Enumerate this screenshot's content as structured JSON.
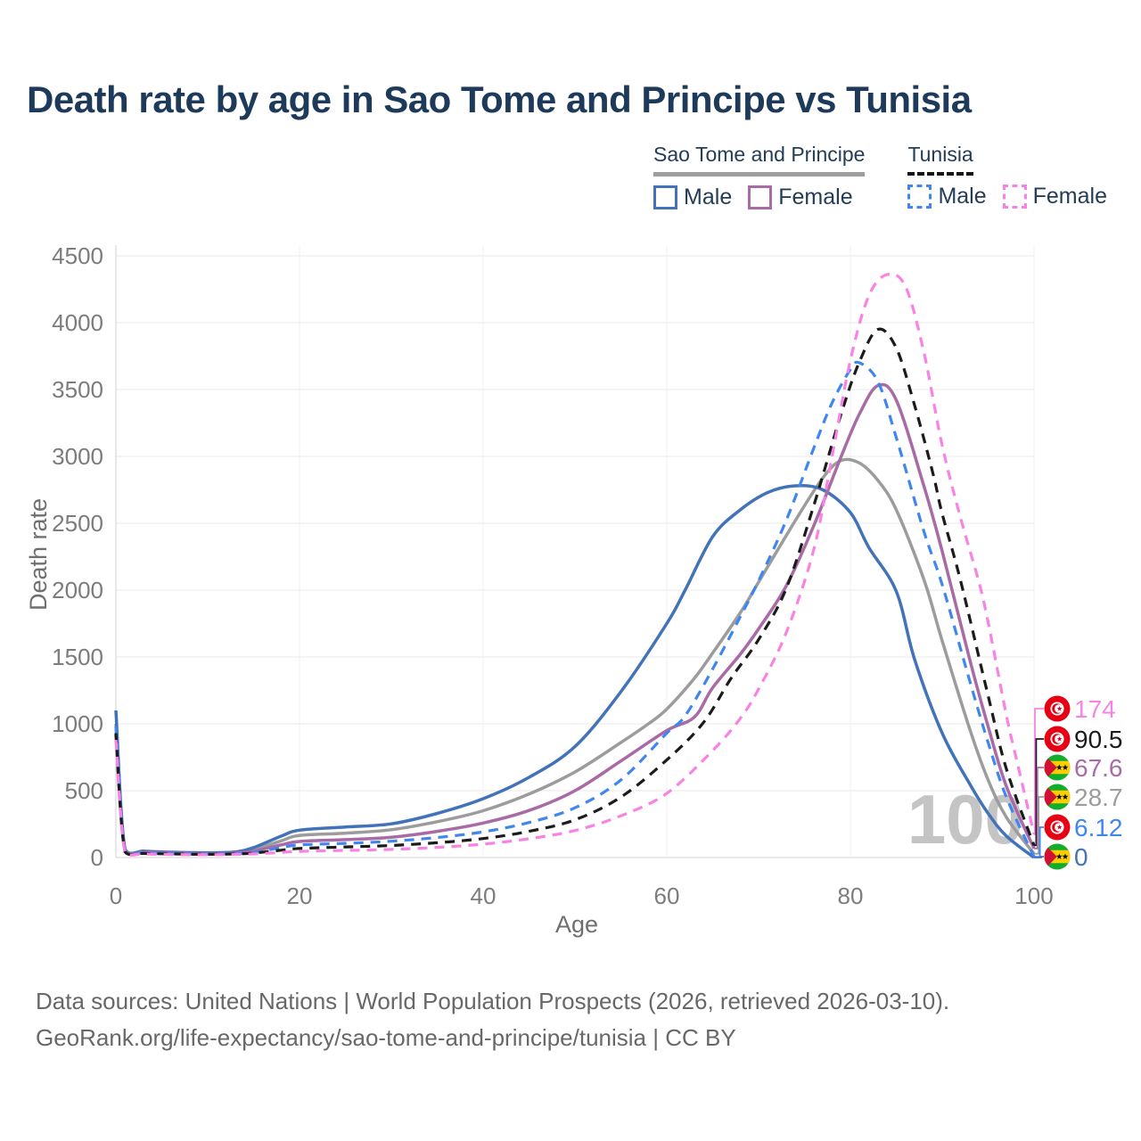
{
  "title": "Death rate by age in Sao Tome and Principe vs Tunisia",
  "legend": {
    "groups": [
      {
        "label": "Sao Tome and Principe",
        "line_style": "solid",
        "line_color": "#9e9e9e",
        "items": [
          {
            "label": "Male",
            "color": "#4273b9",
            "dash": false
          },
          {
            "label": "Female",
            "color": "#a96ba5",
            "dash": false
          }
        ]
      },
      {
        "label": "Tunisia",
        "line_style": "dashed",
        "line_color": "#141414",
        "items": [
          {
            "label": "Male",
            "color": "#3f86f0",
            "dash": true
          },
          {
            "label": "Female",
            "color": "#f983e5",
            "dash": true
          }
        ]
      }
    ]
  },
  "watermark": "100",
  "footer": {
    "line1": "Data sources: United Nations | World Population Prospects (2026, retrieved 2026-03-10).",
    "line2": "GeoRank.org/life-expectancy/sao-tome-and-principe/tunisia | CC BY"
  },
  "chart_data": {
    "type": "line",
    "xlabel": "Age",
    "ylabel": "Death rate",
    "xlim": [
      0,
      100
    ],
    "ylim": [
      0,
      4500
    ],
    "x_ticks": [
      0,
      20,
      40,
      60,
      80,
      100
    ],
    "y_ticks": [
      0,
      500,
      1000,
      1500,
      2000,
      2500,
      3000,
      3500,
      4000,
      4500
    ],
    "grid": true,
    "legend_position": "top-right",
    "series": [
      {
        "name": "Sao Tome and Principe — Both sexes",
        "color": "#9c9c9c",
        "dash": "solid",
        "country": "sao-tome",
        "end_value": 28.7,
        "points": [
          [
            0,
            1000
          ],
          [
            1,
            56
          ],
          [
            3,
            42
          ],
          [
            5,
            38
          ],
          [
            8,
            33
          ],
          [
            10,
            32
          ],
          [
            13,
            37
          ],
          [
            15,
            60
          ],
          [
            18,
            125
          ],
          [
            20,
            165
          ],
          [
            25,
            182
          ],
          [
            30,
            208
          ],
          [
            35,
            268
          ],
          [
            40,
            350
          ],
          [
            45,
            475
          ],
          [
            50,
            640
          ],
          [
            55,
            860
          ],
          [
            58,
            1000
          ],
          [
            60,
            1110
          ],
          [
            63,
            1340
          ],
          [
            65,
            1530
          ],
          [
            68,
            1830
          ],
          [
            70,
            2060
          ],
          [
            74,
            2520
          ],
          [
            77,
            2840
          ],
          [
            79,
            2970
          ],
          [
            81,
            2950
          ],
          [
            83,
            2820
          ],
          [
            85,
            2600
          ],
          [
            88,
            2080
          ],
          [
            90,
            1620
          ],
          [
            93,
            960
          ],
          [
            95,
            580
          ],
          [
            97,
            300
          ],
          [
            100,
            28.7
          ]
        ]
      },
      {
        "name": "Sao Tome and Principe — Male",
        "color": "#4273b9",
        "dash": "solid",
        "country": "sao-tome",
        "end_value": 0,
        "points": [
          [
            0,
            1100
          ],
          [
            1,
            62
          ],
          [
            3,
            48
          ],
          [
            5,
            42
          ],
          [
            8,
            37
          ],
          [
            10,
            36
          ],
          [
            13,
            42
          ],
          [
            15,
            75
          ],
          [
            18,
            160
          ],
          [
            20,
            205
          ],
          [
            25,
            228
          ],
          [
            30,
            252
          ],
          [
            35,
            330
          ],
          [
            40,
            440
          ],
          [
            45,
            600
          ],
          [
            50,
            830
          ],
          [
            55,
            1240
          ],
          [
            60,
            1750
          ],
          [
            62,
            2000
          ],
          [
            65,
            2400
          ],
          [
            68,
            2600
          ],
          [
            71,
            2730
          ],
          [
            74,
            2780
          ],
          [
            77,
            2750
          ],
          [
            80,
            2580
          ],
          [
            82,
            2320
          ],
          [
            85,
            1990
          ],
          [
            87,
            1480
          ],
          [
            90,
            930
          ],
          [
            93,
            550
          ],
          [
            95,
            330
          ],
          [
            97,
            160
          ],
          [
            100,
            0
          ]
        ]
      },
      {
        "name": "Sao Tome and Principe — Female",
        "color": "#a96ba5",
        "dash": "solid",
        "country": "sao-tome",
        "end_value": 67.6,
        "points": [
          [
            0,
            920
          ],
          [
            1,
            50
          ],
          [
            3,
            38
          ],
          [
            5,
            34
          ],
          [
            8,
            30
          ],
          [
            10,
            29
          ],
          [
            13,
            33
          ],
          [
            15,
            48
          ],
          [
            18,
            95
          ],
          [
            20,
            120
          ],
          [
            25,
            134
          ],
          [
            30,
            152
          ],
          [
            35,
            196
          ],
          [
            40,
            258
          ],
          [
            45,
            352
          ],
          [
            50,
            500
          ],
          [
            55,
            722
          ],
          [
            60,
            950
          ],
          [
            63,
            1050
          ],
          [
            65,
            1270
          ],
          [
            68,
            1520
          ],
          [
            70,
            1710
          ],
          [
            73,
            2030
          ],
          [
            76,
            2480
          ],
          [
            79,
            3000
          ],
          [
            81,
            3320
          ],
          [
            83,
            3530
          ],
          [
            85,
            3420
          ],
          [
            88,
            2780
          ],
          [
            90,
            2290
          ],
          [
            93,
            1480
          ],
          [
            95,
            980
          ],
          [
            97,
            530
          ],
          [
            100,
            67.6
          ]
        ]
      },
      {
        "name": "Tunisia — Male",
        "color": "#3f86f0",
        "dash": "dashed",
        "country": "tunisia",
        "end_value": 6.12,
        "points": [
          [
            0,
            980
          ],
          [
            1,
            46
          ],
          [
            3,
            33
          ],
          [
            5,
            30
          ],
          [
            8,
            26
          ],
          [
            10,
            26
          ],
          [
            13,
            29
          ],
          [
            15,
            38
          ],
          [
            18,
            75
          ],
          [
            20,
            95
          ],
          [
            25,
            106
          ],
          [
            30,
            122
          ],
          [
            35,
            150
          ],
          [
            40,
            192
          ],
          [
            45,
            262
          ],
          [
            50,
            372
          ],
          [
            55,
            580
          ],
          [
            60,
            930
          ],
          [
            62,
            1060
          ],
          [
            65,
            1410
          ],
          [
            68,
            1800
          ],
          [
            70,
            2070
          ],
          [
            73,
            2520
          ],
          [
            76,
            3060
          ],
          [
            78,
            3400
          ],
          [
            80,
            3650
          ],
          [
            81,
            3700
          ],
          [
            83,
            3560
          ],
          [
            85,
            3140
          ],
          [
            88,
            2440
          ],
          [
            90,
            2040
          ],
          [
            93,
            1320
          ],
          [
            95,
            860
          ],
          [
            97,
            450
          ],
          [
            100,
            6.12
          ]
        ]
      },
      {
        "name": "Tunisia — Both sexes",
        "color": "#1b1b1b",
        "dash": "dashed",
        "country": "tunisia",
        "end_value": 90.5,
        "points": [
          [
            0,
            930
          ],
          [
            1,
            42
          ],
          [
            3,
            31
          ],
          [
            5,
            28
          ],
          [
            8,
            25
          ],
          [
            10,
            24
          ],
          [
            13,
            27
          ],
          [
            15,
            33
          ],
          [
            18,
            55
          ],
          [
            20,
            68
          ],
          [
            25,
            79
          ],
          [
            30,
            90
          ],
          [
            35,
            111
          ],
          [
            40,
            142
          ],
          [
            45,
            196
          ],
          [
            50,
            282
          ],
          [
            55,
            452
          ],
          [
            60,
            730
          ],
          [
            64,
            1010
          ],
          [
            67,
            1340
          ],
          [
            70,
            1630
          ],
          [
            73,
            2010
          ],
          [
            76,
            2630
          ],
          [
            79,
            3320
          ],
          [
            81,
            3710
          ],
          [
            83,
            3950
          ],
          [
            85,
            3810
          ],
          [
            87,
            3380
          ],
          [
            89,
            2870
          ],
          [
            90,
            2570
          ],
          [
            92,
            2070
          ],
          [
            95,
            1210
          ],
          [
            97,
            660
          ],
          [
            100,
            90.5
          ]
        ]
      },
      {
        "name": "Tunisia — Female",
        "color": "#f983e5",
        "dash": "dashed",
        "country": "tunisia",
        "end_value": 174,
        "points": [
          [
            0,
            880
          ],
          [
            1,
            38
          ],
          [
            3,
            27
          ],
          [
            5,
            24
          ],
          [
            8,
            21
          ],
          [
            10,
            21
          ],
          [
            13,
            23
          ],
          [
            15,
            27
          ],
          [
            18,
            38
          ],
          [
            20,
            46
          ],
          [
            25,
            53
          ],
          [
            30,
            61
          ],
          [
            35,
            76
          ],
          [
            40,
            100
          ],
          [
            45,
            141
          ],
          [
            50,
            202
          ],
          [
            55,
            312
          ],
          [
            60,
            480
          ],
          [
            65,
            800
          ],
          [
            68,
            1040
          ],
          [
            70,
            1260
          ],
          [
            73,
            1680
          ],
          [
            76,
            2300
          ],
          [
            78,
            3000
          ],
          [
            80,
            3720
          ],
          [
            82,
            4200
          ],
          [
            84,
            4360
          ],
          [
            86,
            4270
          ],
          [
            88,
            3780
          ],
          [
            90,
            3080
          ],
          [
            92,
            2540
          ],
          [
            94,
            2060
          ],
          [
            95,
            1760
          ],
          [
            97,
            1060
          ],
          [
            98,
            760
          ],
          [
            100,
            174
          ]
        ]
      }
    ],
    "end_labels": [
      {
        "value": "174",
        "country": "tunisia",
        "color": "#f983e5"
      },
      {
        "value": "90.5",
        "country": "tunisia",
        "color": "#1b1b1b"
      },
      {
        "value": "67.6",
        "country": "sao-tome",
        "color": "#a96ba5"
      },
      {
        "value": "28.7",
        "country": "sao-tome",
        "color": "#9c9c9c"
      },
      {
        "value": "6.12",
        "country": "tunisia",
        "color": "#3f86f0"
      },
      {
        "value": "0",
        "country": "sao-tome",
        "color": "#4273b9"
      }
    ]
  }
}
